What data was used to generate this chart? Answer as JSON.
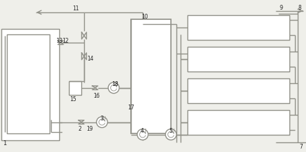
{
  "bg": "#efefea",
  "lc": "#909088",
  "lw": 1.0,
  "fc_white": "#ffffff",
  "label_color": "#222222"
}
